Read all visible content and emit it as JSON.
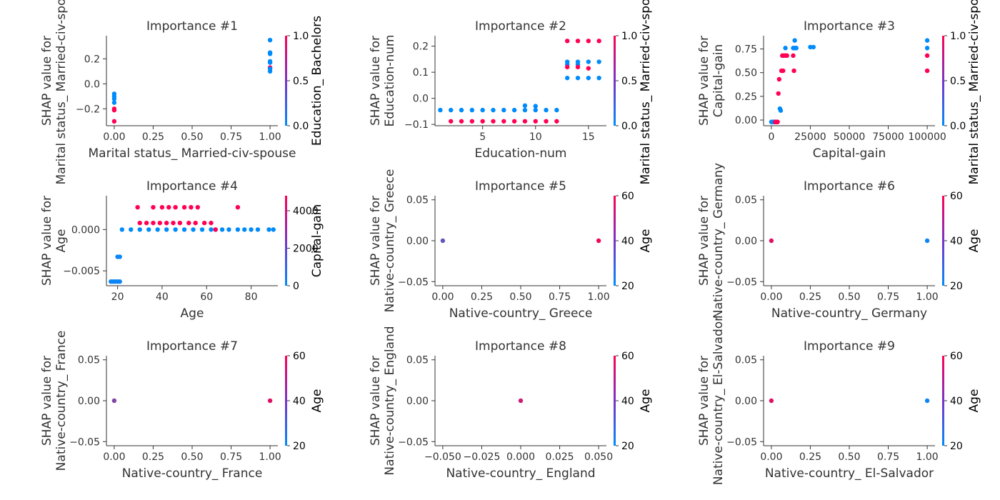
{
  "colors": {
    "low": "#008bfb",
    "high": "#ff0052"
  },
  "chart_data": [
    {
      "type": "scatter",
      "title": "Importance #1",
      "xlabel": "Marital status_ Married-civ-spouse",
      "ylabel": [
        "SHAP value for",
        "Marital status_ Married-civ-spouse"
      ],
      "xticks": [
        "0.00",
        "0.25",
        "0.50",
        "0.75",
        "1.00"
      ],
      "xtick_values": [
        0,
        0.25,
        0.5,
        0.75,
        1.0
      ],
      "yticks": [
        "−0.2",
        "0.0",
        "0.2"
      ],
      "ytick_values": [
        -0.2,
        0,
        0.2
      ],
      "xlim": [
        -0.05,
        1.05
      ],
      "ylim": [
        -0.335,
        0.385
      ],
      "colorbar": {
        "label": "Education_ Bachelors",
        "ticks": [
          "0.0",
          "0.5",
          "1.0"
        ],
        "tick_values": [
          0,
          0.5,
          1
        ],
        "range": [
          0,
          1
        ]
      },
      "points": [
        [
          0,
          -0.08,
          0
        ],
        [
          0,
          -0.1,
          0
        ],
        [
          0,
          -0.12,
          0
        ],
        [
          0,
          -0.15,
          0
        ],
        [
          0,
          -0.2,
          1
        ],
        [
          0,
          -0.21,
          1
        ],
        [
          0,
          -0.3,
          1
        ],
        [
          1,
          0.35,
          0
        ],
        [
          1,
          0.25,
          0
        ],
        [
          1,
          0.24,
          0
        ],
        [
          1,
          0.18,
          0
        ],
        [
          1,
          0.17,
          0
        ],
        [
          1,
          0.13,
          1
        ],
        [
          1,
          0.1,
          0
        ],
        [
          1,
          0.12,
          0
        ]
      ]
    },
    {
      "type": "scatter",
      "title": "Importance #2",
      "xlabel": "Education-num",
      "ylabel": [
        "SHAP value for",
        "Education-num"
      ],
      "xticks": [
        "5",
        "10",
        "15"
      ],
      "xtick_values": [
        5,
        10,
        15
      ],
      "yticks": [
        "−0.1",
        "0.0",
        "0.1",
        "0.2"
      ],
      "ytick_values": [
        -0.1,
        0,
        0.1,
        0.2
      ],
      "xlim": [
        0.5,
        16.7
      ],
      "ylim": [
        -0.105,
        0.24
      ],
      "colorbar": {
        "label": "Marital status_ Married-civ-spouse",
        "ticks": [
          "0.0",
          "0.5",
          "1.0"
        ],
        "tick_values": [
          0,
          0.5,
          1
        ],
        "range": [
          0,
          1
        ]
      },
      "points": [
        [
          1,
          -0.045,
          0
        ],
        [
          2,
          -0.045,
          0
        ],
        [
          3,
          -0.045,
          0
        ],
        [
          4,
          -0.045,
          0
        ],
        [
          5,
          -0.045,
          0
        ],
        [
          6,
          -0.045,
          0
        ],
        [
          7,
          -0.045,
          0
        ],
        [
          8,
          -0.045,
          0
        ],
        [
          9,
          -0.045,
          0
        ],
        [
          9,
          -0.028,
          0
        ],
        [
          10,
          -0.045,
          0
        ],
        [
          10,
          -0.03,
          0
        ],
        [
          11,
          -0.045,
          0
        ],
        [
          12,
          -0.045,
          0
        ],
        [
          2,
          -0.088,
          1
        ],
        [
          3,
          -0.088,
          1
        ],
        [
          4,
          -0.088,
          1
        ],
        [
          5,
          -0.088,
          1
        ],
        [
          6,
          -0.088,
          1
        ],
        [
          7,
          -0.088,
          1
        ],
        [
          8,
          -0.088,
          1
        ],
        [
          9,
          -0.088,
          1
        ],
        [
          10,
          -0.088,
          1
        ],
        [
          11,
          -0.088,
          1
        ],
        [
          12,
          -0.088,
          1
        ],
        [
          13,
          0.22,
          1
        ],
        [
          14,
          0.22,
          1
        ],
        [
          15,
          0.22,
          1
        ],
        [
          16,
          0.22,
          1
        ],
        [
          13,
          0.14,
          0
        ],
        [
          14,
          0.14,
          0
        ],
        [
          15,
          0.14,
          0
        ],
        [
          16,
          0.14,
          0
        ],
        [
          13,
          0.13,
          0
        ],
        [
          14,
          0.13,
          0
        ],
        [
          13,
          0.12,
          1
        ],
        [
          14,
          0.12,
          1
        ],
        [
          15,
          0.115,
          1
        ],
        [
          13,
          0.078,
          0
        ],
        [
          14,
          0.078,
          0
        ],
        [
          15,
          0.078,
          0
        ],
        [
          16,
          0.078,
          0
        ]
      ]
    },
    {
      "type": "scatter",
      "title": "Importance #3",
      "xlabel": "Capital-gain",
      "ylabel": [
        "SHAP value for",
        "Capital-gain"
      ],
      "xticks": [
        "0",
        "25000",
        "50000",
        "75000",
        "100000"
      ],
      "xtick_values": [
        0,
        25000,
        50000,
        75000,
        100000
      ],
      "yticks": [
        "0.00",
        "0.25",
        "0.50",
        "0.75"
      ],
      "ytick_values": [
        0,
        0.25,
        0.5,
        0.75
      ],
      "xlim": [
        -5000,
        105000
      ],
      "ylim": [
        -0.06,
        0.89
      ],
      "colorbar": {
        "label": "Marital status_ Married-civ-spouse",
        "ticks": [
          "0.0",
          "0.5",
          "1.0"
        ],
        "tick_values": [
          0,
          0.5,
          1
        ],
        "range": [
          0,
          1
        ]
      },
      "points": [
        [
          0,
          -0.02,
          0
        ],
        [
          500,
          -0.02,
          0
        ],
        [
          1000,
          -0.02,
          0
        ],
        [
          1500,
          -0.02,
          0
        ],
        [
          2000,
          -0.02,
          0
        ],
        [
          2500,
          -0.02,
          1
        ],
        [
          3000,
          -0.02,
          1
        ],
        [
          3500,
          -0.02,
          1
        ],
        [
          4000,
          -0.02,
          1
        ],
        [
          4500,
          0.28,
          1
        ],
        [
          5000,
          0.43,
          1
        ],
        [
          5500,
          0.12,
          0
        ],
        [
          6000,
          0.1,
          0
        ],
        [
          6500,
          0.52,
          1
        ],
        [
          7000,
          0.68,
          1
        ],
        [
          7500,
          0.52,
          1
        ],
        [
          8000,
          0.68,
          1
        ],
        [
          9000,
          0.68,
          1
        ],
        [
          10000,
          0.68,
          1
        ],
        [
          9000,
          0.76,
          0
        ],
        [
          14000,
          0.68,
          1
        ],
        [
          14500,
          0.52,
          1
        ],
        [
          14000,
          0.76,
          0
        ],
        [
          15000,
          0.76,
          0
        ],
        [
          15000,
          0.84,
          0
        ],
        [
          16000,
          0.76,
          0
        ],
        [
          25000,
          0.77,
          0
        ],
        [
          27000,
          0.77,
          0
        ],
        [
          100000,
          0.84,
          0
        ],
        [
          100000,
          0.76,
          0
        ],
        [
          100000,
          0.68,
          1
        ],
        [
          100000,
          0.52,
          1
        ]
      ]
    },
    {
      "type": "scatter",
      "title": "Importance #4",
      "xlabel": "Age",
      "ylabel": [
        "SHAP value for",
        "Age"
      ],
      "xticks": [
        "20",
        "40",
        "60",
        "80"
      ],
      "xtick_values": [
        20,
        40,
        60,
        80
      ],
      "yticks": [
        "−0.005",
        "0.000"
      ],
      "ytick_values": [
        -0.005,
        0
      ],
      "xlim": [
        15,
        92
      ],
      "ylim": [
        -0.0068,
        0.0041
      ],
      "colorbar": {
        "label": "Capital-gain",
        "ticks": [
          "0",
          "2000",
          "4000"
        ],
        "tick_values": [
          0,
          2000,
          4000
        ],
        "range": [
          0,
          4800
        ]
      },
      "points": [
        [
          17,
          -0.0063,
          200
        ],
        [
          18,
          -0.0063,
          200
        ],
        [
          19,
          -0.0063,
          200
        ],
        [
          20,
          -0.0063,
          200
        ],
        [
          21,
          -0.0063,
          200
        ],
        [
          20,
          -0.0033,
          200
        ],
        [
          21,
          -0.0033,
          200
        ],
        [
          22,
          0,
          0
        ],
        [
          26,
          0,
          0
        ],
        [
          30,
          0,
          0
        ],
        [
          34,
          0,
          0
        ],
        [
          38,
          0,
          0
        ],
        [
          42,
          0,
          0
        ],
        [
          46,
          0,
          0
        ],
        [
          50,
          0,
          0
        ],
        [
          54,
          0,
          0
        ],
        [
          58,
          0,
          0
        ],
        [
          62,
          0,
          0
        ],
        [
          64,
          0,
          0
        ],
        [
          67,
          0,
          0
        ],
        [
          70,
          0,
          0
        ],
        [
          74,
          0,
          0
        ],
        [
          77,
          0,
          0
        ],
        [
          80,
          0,
          0
        ],
        [
          83,
          0,
          0
        ],
        [
          88,
          0,
          0
        ],
        [
          90,
          0,
          0
        ],
        [
          30,
          0.0008,
          4800
        ],
        [
          33,
          0.0008,
          4800
        ],
        [
          36,
          0.0008,
          4800
        ],
        [
          39,
          0.0008,
          4800
        ],
        [
          42,
          0.0008,
          4800
        ],
        [
          45,
          0.0008,
          4800
        ],
        [
          48,
          0.0008,
          4800
        ],
        [
          52,
          0.0008,
          4800
        ],
        [
          55,
          0.0008,
          4800
        ],
        [
          59,
          0.0008,
          4800
        ],
        [
          62,
          0.0008,
          4800
        ],
        [
          29,
          0.0027,
          4800
        ],
        [
          36,
          0.0027,
          4800
        ],
        [
          40,
          0.0027,
          4800
        ],
        [
          43,
          0.0027,
          4800
        ],
        [
          46,
          0.0027,
          4800
        ],
        [
          50,
          0.0027,
          4800
        ],
        [
          53,
          0.0027,
          4800
        ],
        [
          56,
          0.0027,
          4800
        ],
        [
          74,
          0.0027,
          4800
        ],
        [
          64,
          0,
          4800
        ]
      ]
    },
    {
      "type": "scatter",
      "title": "Importance #5",
      "xlabel": "Native-country_ Greece",
      "ylabel": [
        "SHAP value for",
        "Native-country_ Greece"
      ],
      "xticks": [
        "0.00",
        "0.25",
        "0.50",
        "0.75",
        "1.00"
      ],
      "xtick_values": [
        0,
        0.25,
        0.5,
        0.75,
        1.0
      ],
      "yticks": [
        "−0.05",
        "0.00",
        "0.05"
      ],
      "ytick_values": [
        -0.05,
        0,
        0.05
      ],
      "xlim": [
        -0.05,
        1.05
      ],
      "ylim": [
        -0.055,
        0.055
      ],
      "colorbar": {
        "label": "Age",
        "ticks": [
          "20",
          "40",
          "60"
        ],
        "tick_values": [
          20,
          40,
          60
        ],
        "range": [
          20,
          60
        ]
      },
      "points": [
        [
          0,
          0,
          35
        ],
        [
          1,
          0,
          58
        ]
      ]
    },
    {
      "type": "scatter",
      "title": "Importance #6",
      "xlabel": "Native-country_ Germany",
      "ylabel": [
        "SHAP value for",
        "Native-country_ Germany"
      ],
      "xticks": [
        "0.00",
        "0.25",
        "0.50",
        "0.75",
        "1.00"
      ],
      "xtick_values": [
        0,
        0.25,
        0.5,
        0.75,
        1.0
      ],
      "yticks": [
        "−0.05",
        "0.00",
        "0.05"
      ],
      "ytick_values": [
        -0.05,
        0,
        0.05
      ],
      "xlim": [
        -0.05,
        1.05
      ],
      "ylim": [
        -0.055,
        0.055
      ],
      "colorbar": {
        "label": "Age",
        "ticks": [
          "20",
          "40",
          "60"
        ],
        "tick_values": [
          20,
          40,
          60
        ],
        "range": [
          20,
          60
        ]
      },
      "points": [
        [
          0,
          0,
          55
        ],
        [
          1,
          0,
          22
        ]
      ]
    },
    {
      "type": "scatter",
      "title": "Importance #7",
      "xlabel": "Native-country_ France",
      "ylabel": [
        "SHAP value for",
        "Native-country_ France"
      ],
      "xticks": [
        "0.00",
        "0.25",
        "0.50",
        "0.75",
        "1.00"
      ],
      "xtick_values": [
        0,
        0.25,
        0.5,
        0.75,
        1.0
      ],
      "yticks": [
        "−0.05",
        "0.00",
        "0.05"
      ],
      "ytick_values": [
        -0.05,
        0,
        0.05
      ],
      "xlim": [
        -0.05,
        1.05
      ],
      "ylim": [
        -0.055,
        0.055
      ],
      "colorbar": {
        "label": "Age",
        "ticks": [
          "20",
          "40",
          "60"
        ],
        "tick_values": [
          20,
          40,
          60
        ],
        "range": [
          20,
          60
        ]
      },
      "points": [
        [
          0,
          0,
          40
        ],
        [
          1,
          0,
          55
        ]
      ]
    },
    {
      "type": "scatter",
      "title": "Importance #8",
      "xlabel": "Native-country_ England",
      "ylabel": [
        "SHAP value for",
        "Native-country_ England"
      ],
      "xticks": [
        "−0.050",
        "−0.025",
        "0.000",
        "0.025",
        "0.050"
      ],
      "xtick_values": [
        -0.05,
        -0.025,
        0,
        0.025,
        0.05
      ],
      "yticks": [
        "−0.05",
        "0.00",
        "0.05"
      ],
      "ytick_values": [
        -0.05,
        0,
        0.05
      ],
      "xlim": [
        -0.055,
        0.055
      ],
      "ylim": [
        -0.055,
        0.055
      ],
      "colorbar": {
        "label": "Age",
        "ticks": [
          "20",
          "40",
          "60"
        ],
        "tick_values": [
          20,
          40,
          60
        ],
        "range": [
          20,
          60
        ]
      },
      "points": [
        [
          0,
          0,
          52
        ]
      ]
    },
    {
      "type": "scatter",
      "title": "Importance #9",
      "xlabel": "Native-country_ El-Salvador",
      "ylabel": [
        "SHAP value for",
        "Native-country_ El-Salvador"
      ],
      "xticks": [
        "0.00",
        "0.25",
        "0.50",
        "0.75",
        "1.00"
      ],
      "xtick_values": [
        0,
        0.25,
        0.5,
        0.75,
        1.0
      ],
      "yticks": [
        "−0.05",
        "0.00",
        "0.05"
      ],
      "ytick_values": [
        -0.05,
        0,
        0.05
      ],
      "xlim": [
        -0.05,
        1.05
      ],
      "ylim": [
        -0.055,
        0.055
      ],
      "colorbar": {
        "label": "Age",
        "ticks": [
          "20",
          "40",
          "60"
        ],
        "tick_values": [
          20,
          40,
          60
        ],
        "range": [
          20,
          60
        ]
      },
      "points": [
        [
          0,
          0,
          55
        ],
        [
          1,
          0,
          22
        ]
      ]
    }
  ]
}
